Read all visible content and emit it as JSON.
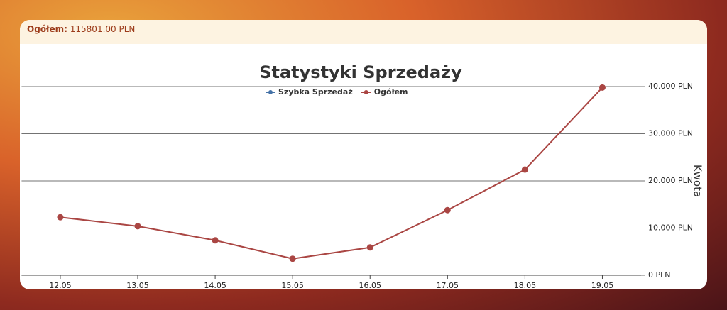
{
  "header": {
    "label": "Ogółem:",
    "value": "115801.00 PLN"
  },
  "chart_data": {
    "type": "line",
    "title": "Statystyki Sprzedaży",
    "y_axis_label": "Kwota",
    "categories": [
      "12.05",
      "13.05",
      "14.05",
      "15.05",
      "16.05",
      "17.05",
      "18.05",
      "19.05"
    ],
    "series": [
      {
        "name": "Szybka Sprzedaż",
        "color": "#4572a7",
        "values": [
          null,
          null,
          null,
          null,
          null,
          null,
          null,
          null
        ]
      },
      {
        "name": "Ogółem",
        "color": "#aa4643",
        "values": [
          12300,
          10400,
          7400,
          3500,
          5900,
          13800,
          22400,
          39800
        ]
      }
    ],
    "ylim": [
      0,
      40000
    ],
    "yticks": [
      {
        "value": 0,
        "label": "0 PLN"
      },
      {
        "value": 10000,
        "label": "10.000 PLN"
      },
      {
        "value": 20000,
        "label": "20.000 PLN"
      },
      {
        "value": 30000,
        "label": "30.000 PLN"
      },
      {
        "value": 40000,
        "label": "40.000 PLN"
      }
    ],
    "grid": true,
    "y_axis_side": "right",
    "legend": "top"
  }
}
